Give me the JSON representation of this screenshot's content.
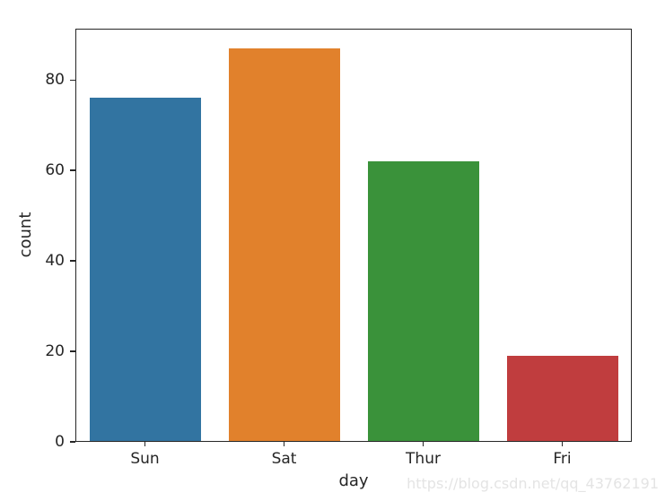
{
  "chart_data": {
    "type": "bar",
    "categories": [
      "Sun",
      "Sat",
      "Thur",
      "Fri"
    ],
    "values": [
      76,
      87,
      62,
      19
    ],
    "title": "",
    "xlabel": "day",
    "ylabel": "count",
    "ylim": [
      0,
      91.35
    ],
    "yticks": [
      0,
      20,
      40,
      60,
      80
    ],
    "bar_colors": [
      "#3274a1",
      "#e1812c",
      "#3a923a",
      "#c03d3e"
    ],
    "bar_rel_width": 0.8,
    "grid": false,
    "legend": null
  },
  "watermark": {
    "text": "https://blog.csdn.net/qq_43762191",
    "color": "#e4e4e4"
  },
  "colors": {
    "spine": "#262626",
    "text": "#262626",
    "background": "#ffffff"
  }
}
